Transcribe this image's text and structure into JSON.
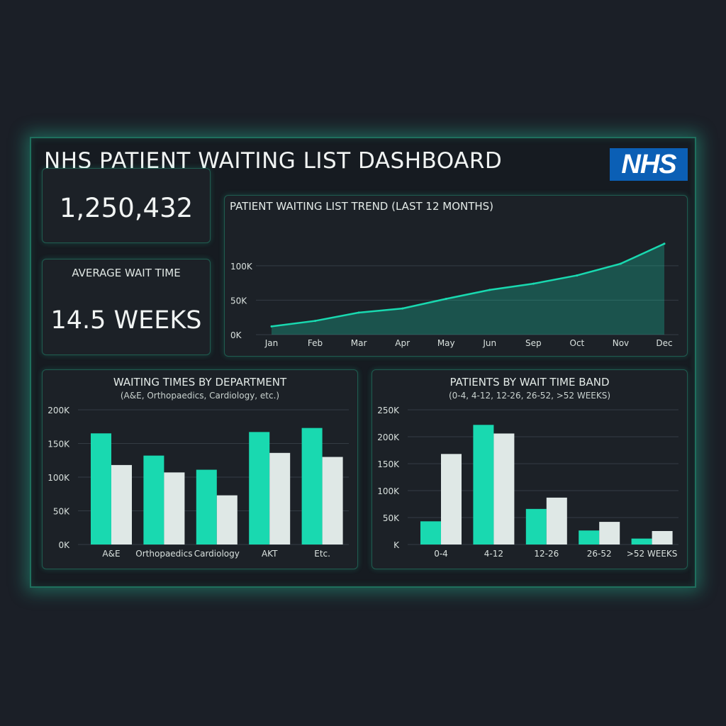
{
  "header": {
    "title": "NHS PATIENT WAITING LIST DASHBOARD",
    "logo_text": "NHS"
  },
  "kpis": {
    "total_patients": "1,250,432",
    "avg_wait_label": "AVERAGE WAIT TIME",
    "avg_wait_value": "14.5 WEEKS"
  },
  "colors": {
    "teal": "#19d9b0",
    "light": "#dfe8e6",
    "grid": "#343c44"
  },
  "chart_data": [
    {
      "type": "area",
      "title": "PATIENT WAITING LIST TREND (LAST 12 MONTHS)",
      "categories": [
        "Jan",
        "Feb",
        "Mar",
        "Apr",
        "May",
        "Jun",
        "Sep",
        "Oct",
        "Nov",
        "Dec"
      ],
      "values": [
        12,
        20,
        32,
        38,
        52,
        65,
        74,
        86,
        103,
        132
      ],
      "y_ticks": [
        "0K",
        "50K",
        "100K"
      ],
      "tick_values": [
        0,
        50,
        100
      ],
      "ylim": [
        0,
        140
      ],
      "grid": true
    },
    {
      "type": "bar",
      "title": "WAITING TIMES BY DEPARTMENT",
      "subtitle": "(A&E, Orthopaedics, Cardiology, etc.)",
      "categories": [
        "A&E",
        "Orthopaedics",
        "Cardiology",
        "AKT",
        "Etc."
      ],
      "series": [
        {
          "values": [
            165,
            132,
            111,
            167,
            173
          ]
        },
        {
          "values": [
            118,
            107,
            73,
            136,
            130
          ]
        }
      ],
      "y_ticks": [
        "0K",
        "50K",
        "100K",
        "150K",
        "200K"
      ],
      "tick_values": [
        0,
        50,
        100,
        150,
        200
      ],
      "ylim": [
        0,
        200
      ],
      "grid": true
    },
    {
      "type": "bar",
      "title": "PATIENTS BY WAIT TIME BAND",
      "subtitle": "(0-4, 4-12, 12-26, 26-52, >52 WEEKS)",
      "categories": [
        "0-4",
        "4-12",
        "12-26",
        "26-52",
        ">52 WEEKS"
      ],
      "series": [
        {
          "values": [
            43,
            222,
            66,
            26,
            11
          ]
        },
        {
          "values": [
            168,
            206,
            87,
            42,
            25
          ]
        }
      ],
      "y_ticks": [
        "K",
        "50K",
        "100K",
        "150K",
        "200K",
        "250K"
      ],
      "tick_values": [
        0,
        50,
        100,
        150,
        200,
        250
      ],
      "ylim": [
        0,
        250
      ],
      "grid": true
    }
  ]
}
